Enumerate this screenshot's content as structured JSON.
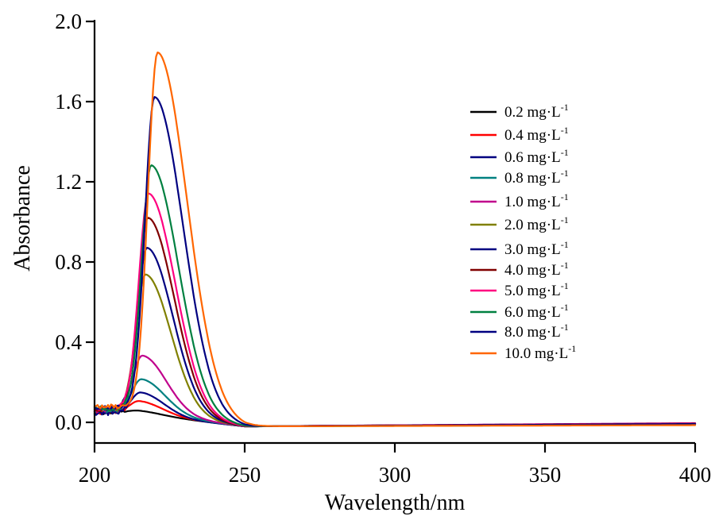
{
  "chart_data": {
    "type": "line",
    "title": "",
    "xlabel": "Wavelength/nm",
    "ylabel": "Absorbance",
    "xlim": [
      200,
      400
    ],
    "ylim": [
      0.0,
      2.0
    ],
    "xticks": [
      200,
      250,
      300,
      350,
      400
    ],
    "xtick_labels": [
      "200",
      "250",
      "300",
      "350",
      "400"
    ],
    "yticks": [
      0.0,
      0.4,
      0.8,
      1.2,
      1.6,
      2.0
    ],
    "ytick_labels": [
      "0.0",
      "0.4",
      "0.8",
      "1.2",
      "1.6",
      "2.0"
    ],
    "grid": false,
    "legend_position": "top-right",
    "legend_unit": "mg·L",
    "legend_unit_sup": "-1",
    "series": [
      {
        "name": "0.2 mg·L-1",
        "label": "0.2",
        "color": "#000000",
        "peak_x": 215.0,
        "peak_y": 0.067,
        "baseline_start": 0.05,
        "end_value": -0.005
      },
      {
        "name": "0.4 mg·L-1",
        "label": "0.4",
        "color": "#FF0000",
        "peak_x": 215.0,
        "peak_y": 0.115,
        "baseline_start": 0.05,
        "end_value": -0.007
      },
      {
        "name": "0.6 mg·L-1",
        "label": "0.6",
        "color": "#000080",
        "peak_x": 215.4,
        "peak_y": 0.158,
        "baseline_start": 0.045,
        "end_value": -0.006
      },
      {
        "name": "0.8 mg·L-1",
        "label": "0.8",
        "color": "#008080",
        "peak_x": 215.7,
        "peak_y": 0.226,
        "baseline_start": 0.055,
        "end_value": -0.008
      },
      {
        "name": "1.0 mg·L-1",
        "label": "1.0",
        "color": "#C0008C",
        "peak_x": 216.0,
        "peak_y": 0.345,
        "baseline_start": 0.06,
        "end_value": -0.004
      },
      {
        "name": "2.0 mg·L-1",
        "label": "2.0",
        "color": "#808000",
        "peak_x": 217.0,
        "peak_y": 0.752,
        "baseline_start": 0.06,
        "end_value": -0.01
      },
      {
        "name": "3.0 mg·L-1",
        "label": "3.0",
        "color": "#000080",
        "peak_x": 217.5,
        "peak_y": 0.887,
        "baseline_start": 0.065,
        "end_value": -0.009
      },
      {
        "name": "4.0 mg·L-1",
        "label": "4.0",
        "color": "#800000",
        "peak_x": 217.8,
        "peak_y": 1.038,
        "baseline_start": 0.065,
        "end_value": -0.006
      },
      {
        "name": "5.0 mg·L-1",
        "label": "5.0",
        "color": "#FF0080",
        "peak_x": 218.0,
        "peak_y": 1.16,
        "baseline_start": 0.07,
        "end_value": -0.007
      },
      {
        "name": "6.0 mg·L-1",
        "label": "6.0",
        "color": "#008040",
        "peak_x": 218.9,
        "peak_y": 1.303,
        "baseline_start": 0.07,
        "end_value": -0.012
      },
      {
        "name": "8.0 mg·L-1",
        "label": "8.0",
        "color": "#000080",
        "peak_x": 220.0,
        "peak_y": 1.647,
        "baseline_start": 0.075,
        "end_value": -0.008
      },
      {
        "name": "10.0 mg·L-1",
        "label": "10.0",
        "color": "#FF6600",
        "peak_x": 221.0,
        "peak_y": 1.873,
        "baseline_start": 0.08,
        "end_value": -0.014
      }
    ]
  }
}
